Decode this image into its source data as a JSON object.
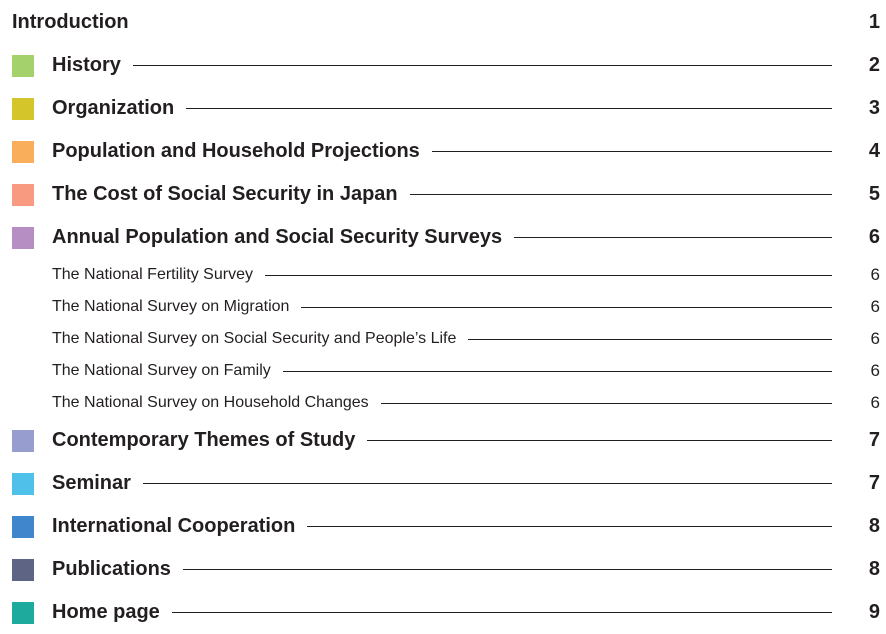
{
  "toc": {
    "entries": [
      {
        "title": "Introduction",
        "page": 1,
        "level": 0
      },
      {
        "title": "History",
        "page": 2,
        "level": 1,
        "color": "#a5d16c"
      },
      {
        "title": "Organization",
        "page": 3,
        "level": 1,
        "color": "#d4c62a"
      },
      {
        "title": "Population and Household Projections",
        "page": 4,
        "level": 1,
        "color": "#f8ae5a"
      },
      {
        "title": "The Cost of Social Security in Japan",
        "page": 5,
        "level": 1,
        "color": "#f89a80"
      },
      {
        "title": "Annual Population and Social Security Surveys",
        "page": 6,
        "level": 1,
        "color": "#b68ec4"
      },
      {
        "title": "The National Fertility Survey",
        "page": 6,
        "level": 2
      },
      {
        "title": "The National Survey on Migration",
        "page": 6,
        "level": 2
      },
      {
        "title": "The National Survey on Social Security and People’s Life",
        "page": 6,
        "level": 2
      },
      {
        "title": "The National Survey on Family",
        "page": 6,
        "level": 2
      },
      {
        "title": "The National Survey on Household Changes",
        "page": 6,
        "level": 2
      },
      {
        "title": "Contemporary Themes of Study",
        "page": 7,
        "level": 1,
        "color": "#979dcf"
      },
      {
        "title": "Seminar",
        "page": 7,
        "level": 1,
        "color": "#4ec0ea"
      },
      {
        "title": "International Cooperation",
        "page": 8,
        "level": 1,
        "color": "#3f86cc"
      },
      {
        "title": "Publications",
        "page": 8,
        "level": 1,
        "color": "#5e6584"
      },
      {
        "title": "Home page",
        "page": 9,
        "level": 1,
        "color": "#1faa9e"
      }
    ]
  }
}
